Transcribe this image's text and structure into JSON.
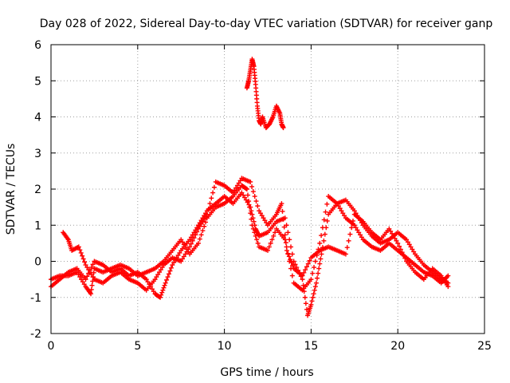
{
  "chart_data": {
    "type": "scatter",
    "title": "Day 028 of 2022, Sidereal Day-to-day VTEC variation (SDTVAR) for receiver ganp",
    "xlabel": "GPS time / hours",
    "ylabel": "SDTVAR / TECUs",
    "xlim": [
      0,
      25
    ],
    "ylim": [
      -2,
      6
    ],
    "xticks": [
      "0",
      "5",
      "10",
      "15",
      "20",
      "25"
    ],
    "yticks": [
      "-2",
      "-1",
      "0",
      "1",
      "2",
      "3",
      "4",
      "5",
      "6"
    ],
    "grid": true,
    "marker": "plus",
    "color": "#ff0000",
    "series": [
      {
        "name": "track-a",
        "points": [
          [
            0.0,
            -0.7
          ],
          [
            0.5,
            -0.5
          ],
          [
            1.0,
            -0.3
          ],
          [
            1.5,
            -0.2
          ],
          [
            2.0,
            -0.5
          ],
          [
            2.5,
            0.0
          ],
          [
            3.0,
            -0.1
          ],
          [
            3.5,
            -0.3
          ],
          [
            4.0,
            -0.2
          ],
          [
            4.5,
            -0.4
          ],
          [
            5.0,
            -0.3
          ],
          [
            5.5,
            -0.5
          ],
          [
            6.0,
            -0.9
          ],
          [
            6.3,
            -1.0
          ],
          [
            6.6,
            -0.6
          ],
          [
            7.0,
            -0.1
          ],
          [
            7.5,
            0.3
          ],
          [
            8.0,
            0.6
          ],
          [
            8.5,
            1.0
          ],
          [
            9.0,
            1.4
          ],
          [
            9.5,
            1.6
          ],
          [
            10.0,
            1.8
          ],
          [
            10.5,
            1.6
          ],
          [
            11.0,
            1.9
          ],
          [
            11.5,
            1.5
          ],
          [
            11.8,
            0.9
          ],
          [
            12.0,
            0.7
          ],
          [
            12.5,
            0.8
          ],
          [
            13.0,
            1.1
          ],
          [
            13.5,
            1.2
          ],
          [
            14.0,
            0.0
          ],
          [
            14.5,
            -0.5
          ],
          [
            14.8,
            -1.5
          ],
          [
            15.0,
            -1.2
          ],
          [
            15.3,
            -0.6
          ],
          [
            15.6,
            0.2
          ],
          [
            16.0,
            1.3
          ],
          [
            16.5,
            1.6
          ],
          [
            17.0,
            1.7
          ],
          [
            17.5,
            1.4
          ],
          [
            18.0,
            1.0
          ],
          [
            18.5,
            0.7
          ],
          [
            19.0,
            0.5
          ],
          [
            19.5,
            0.6
          ],
          [
            20.0,
            0.8
          ],
          [
            20.5,
            0.6
          ],
          [
            21.0,
            0.2
          ],
          [
            21.5,
            -0.1
          ],
          [
            22.0,
            -0.3
          ],
          [
            22.5,
            -0.5
          ],
          [
            22.9,
            -0.6
          ]
        ]
      },
      {
        "name": "track-b",
        "points": [
          [
            0.0,
            -0.5
          ],
          [
            0.5,
            -0.4
          ],
          [
            1.0,
            -0.4
          ],
          [
            1.5,
            -0.3
          ],
          [
            2.0,
            -0.7
          ],
          [
            2.3,
            -0.9
          ],
          [
            2.5,
            -0.2
          ],
          [
            3.0,
            -0.3
          ],
          [
            3.5,
            -0.2
          ],
          [
            4.0,
            -0.1
          ],
          [
            4.5,
            -0.2
          ],
          [
            5.0,
            -0.4
          ],
          [
            5.5,
            -0.3
          ],
          [
            6.0,
            -0.2
          ],
          [
            6.5,
            0.0
          ],
          [
            7.0,
            0.3
          ],
          [
            7.5,
            0.6
          ],
          [
            8.0,
            0.2
          ],
          [
            8.5,
            0.5
          ],
          [
            9.0,
            1.2
          ],
          [
            9.5,
            1.5
          ],
          [
            10.0,
            1.6
          ],
          [
            10.5,
            1.8
          ],
          [
            11.0,
            2.1
          ],
          [
            11.3,
            2.0
          ],
          [
            11.6,
            1.0
          ],
          [
            12.0,
            0.4
          ],
          [
            12.5,
            0.3
          ],
          [
            13.0,
            0.9
          ],
          [
            13.5,
            0.6
          ],
          [
            14.0,
            -0.6
          ],
          [
            14.5,
            -0.8
          ],
          [
            15.0,
            -0.5
          ],
          [
            15.5,
            0.5
          ],
          [
            16.0,
            1.8
          ],
          [
            16.5,
            1.6
          ],
          [
            17.0,
            1.2
          ],
          [
            17.5,
            1.0
          ],
          [
            18.0,
            0.6
          ],
          [
            18.5,
            0.4
          ],
          [
            19.0,
            0.3
          ],
          [
            19.5,
            0.5
          ],
          [
            20.0,
            0.3
          ],
          [
            20.5,
            0.1
          ],
          [
            21.0,
            -0.1
          ],
          [
            21.5,
            -0.3
          ],
          [
            22.0,
            -0.4
          ],
          [
            22.5,
            -0.6
          ],
          [
            22.9,
            -0.4
          ]
        ]
      },
      {
        "name": "track-c",
        "points": [
          [
            0.7,
            0.8
          ],
          [
            1.0,
            0.6
          ],
          [
            1.2,
            0.3
          ],
          [
            1.6,
            0.4
          ],
          [
            2.0,
            -0.1
          ],
          [
            2.5,
            -0.5
          ],
          [
            3.0,
            -0.6
          ],
          [
            3.5,
            -0.4
          ],
          [
            4.0,
            -0.3
          ],
          [
            4.5,
            -0.5
          ],
          [
            5.0,
            -0.6
          ],
          [
            5.5,
            -0.8
          ],
          [
            6.0,
            -0.5
          ],
          [
            6.5,
            -0.1
          ],
          [
            7.0,
            0.1
          ],
          [
            7.5,
            0.0
          ],
          [
            8.0,
            0.4
          ],
          [
            8.5,
            0.9
          ],
          [
            9.0,
            1.3
          ],
          [
            9.5,
            2.2
          ],
          [
            10.0,
            2.1
          ],
          [
            10.5,
            1.9
          ],
          [
            11.0,
            2.3
          ],
          [
            11.5,
            2.2
          ],
          [
            12.0,
            1.4
          ],
          [
            12.5,
            1.0
          ],
          [
            13.0,
            1.3
          ],
          [
            13.3,
            1.6
          ],
          [
            13.6,
            0.3
          ],
          [
            14.0,
            -0.2
          ],
          [
            14.5,
            -0.4
          ],
          [
            15.0,
            0.1
          ],
          [
            15.5,
            0.3
          ],
          [
            16.0,
            0.4
          ],
          [
            16.5,
            0.3
          ],
          [
            17.0,
            0.2
          ],
          [
            17.5,
            1.3
          ],
          [
            18.0,
            1.1
          ],
          [
            18.5,
            0.8
          ],
          [
            19.0,
            0.6
          ],
          [
            19.5,
            0.9
          ],
          [
            20.0,
            0.5
          ],
          [
            20.5,
            0.0
          ],
          [
            21.0,
            -0.3
          ],
          [
            21.5,
            -0.5
          ],
          [
            22.0,
            -0.2
          ],
          [
            22.5,
            -0.4
          ],
          [
            22.9,
            -0.7
          ]
        ]
      },
      {
        "name": "track-d",
        "points": [
          [
            11.3,
            4.8
          ],
          [
            11.4,
            5.0
          ],
          [
            11.5,
            5.3
          ],
          [
            11.6,
            5.6
          ],
          [
            11.7,
            5.4
          ],
          [
            11.8,
            4.9
          ],
          [
            11.9,
            4.3
          ],
          [
            12.0,
            3.9
          ],
          [
            12.1,
            3.8
          ],
          [
            12.2,
            4.0
          ],
          [
            12.4,
            3.7
          ],
          [
            12.6,
            3.8
          ],
          [
            12.8,
            4.0
          ],
          [
            13.0,
            4.3
          ],
          [
            13.2,
            4.1
          ],
          [
            13.3,
            3.8
          ],
          [
            13.4,
            3.7
          ]
        ]
      }
    ]
  }
}
